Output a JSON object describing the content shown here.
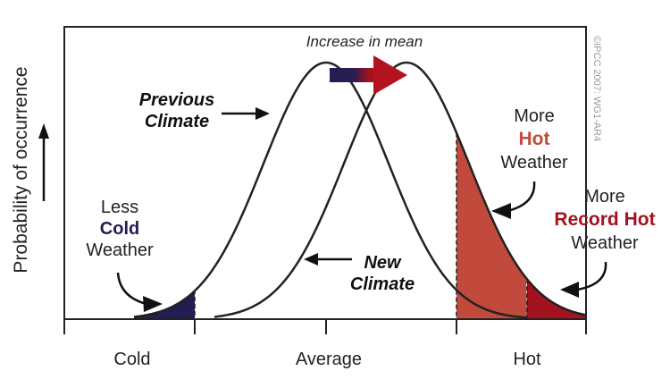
{
  "title": "Increase in mean",
  "y_axis_label": "Probability of occurrence",
  "x_ticks": [
    "Cold",
    "Average",
    "Hot"
  ],
  "curves": {
    "previous": [
      "Previous",
      "Climate"
    ],
    "new": [
      "New",
      "Climate"
    ]
  },
  "annotations": {
    "less_cold": [
      "Less",
      "Cold",
      "Weather"
    ],
    "more_hot": [
      "More",
      "Hot",
      "Weather"
    ],
    "more_record_hot": [
      "More",
      "Record Hot",
      "Weather"
    ]
  },
  "copyright": "©IPCC 2007: WG1-AR4",
  "colors": {
    "cold": "#221d52",
    "hot": "#c24a3c",
    "record_hot": "#a3121f",
    "line": "#222222"
  }
}
